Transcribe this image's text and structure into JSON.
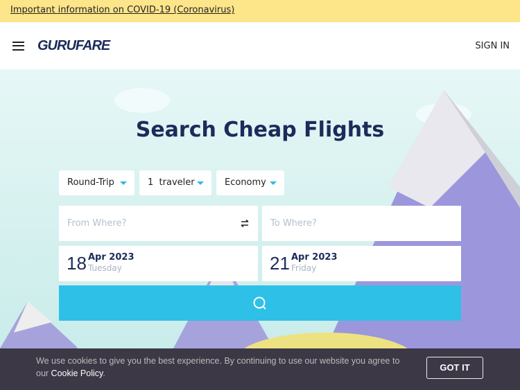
{
  "banner": {
    "covid_link": "Important information on COVID-19 (Coronavirus)"
  },
  "header": {
    "logo": "GURUFARE",
    "sign_in": "SIGN IN"
  },
  "hero": {
    "title": "Search Cheap Flights"
  },
  "search": {
    "trip_type": "Round-Trip",
    "travelers": "1  traveler",
    "cabin": "Economy",
    "from_placeholder": "From Where?",
    "to_placeholder": "To Where?",
    "depart": {
      "day": "18",
      "month_year": "Apr 2023",
      "weekday": "Tuesday"
    },
    "return": {
      "day": "21",
      "month_year": "Apr 2023",
      "weekday": "Friday"
    }
  },
  "cookie": {
    "text": "We use cookies to give you the best experience. By continuing to use our website you agree to our ",
    "policy_link": "Cookie Policy",
    "period": ".",
    "button": "GOT IT"
  },
  "colors": {
    "accent": "#2ec0e6",
    "brand": "#1c2b5a",
    "banner": "#fde58a"
  }
}
